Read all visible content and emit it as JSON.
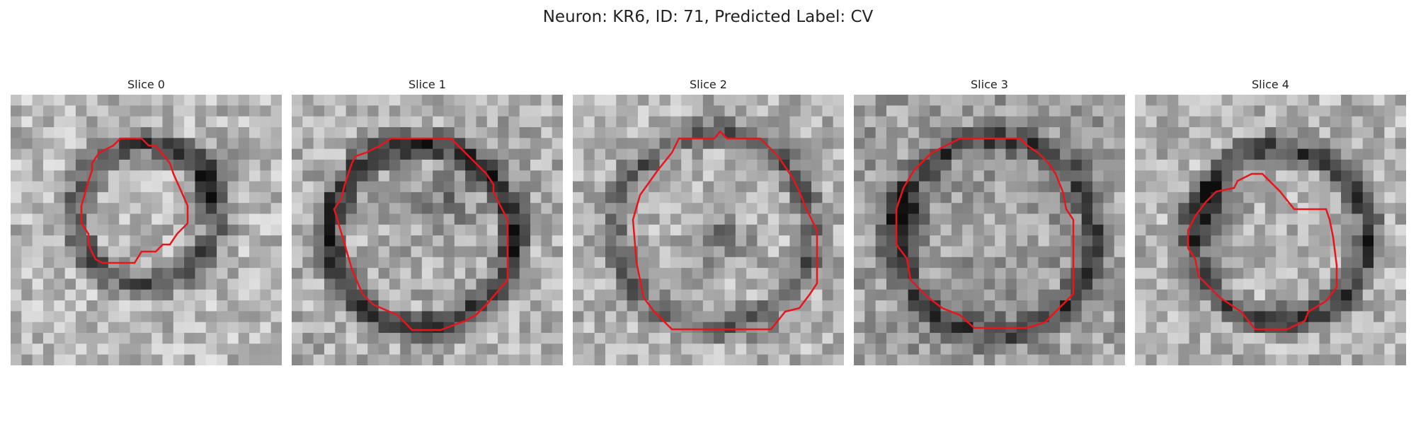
{
  "figure": {
    "title": "Neuron: KR6, ID: 71, Predicted Label: CV"
  },
  "panels": [
    {
      "label": "Slice 0"
    },
    {
      "label": "Slice 1"
    },
    {
      "label": "Slice 2"
    },
    {
      "label": "Slice 3"
    },
    {
      "label": "Slice 4"
    }
  ],
  "colors": {
    "contour": "#e8151b",
    "background": "#ffffff"
  }
}
